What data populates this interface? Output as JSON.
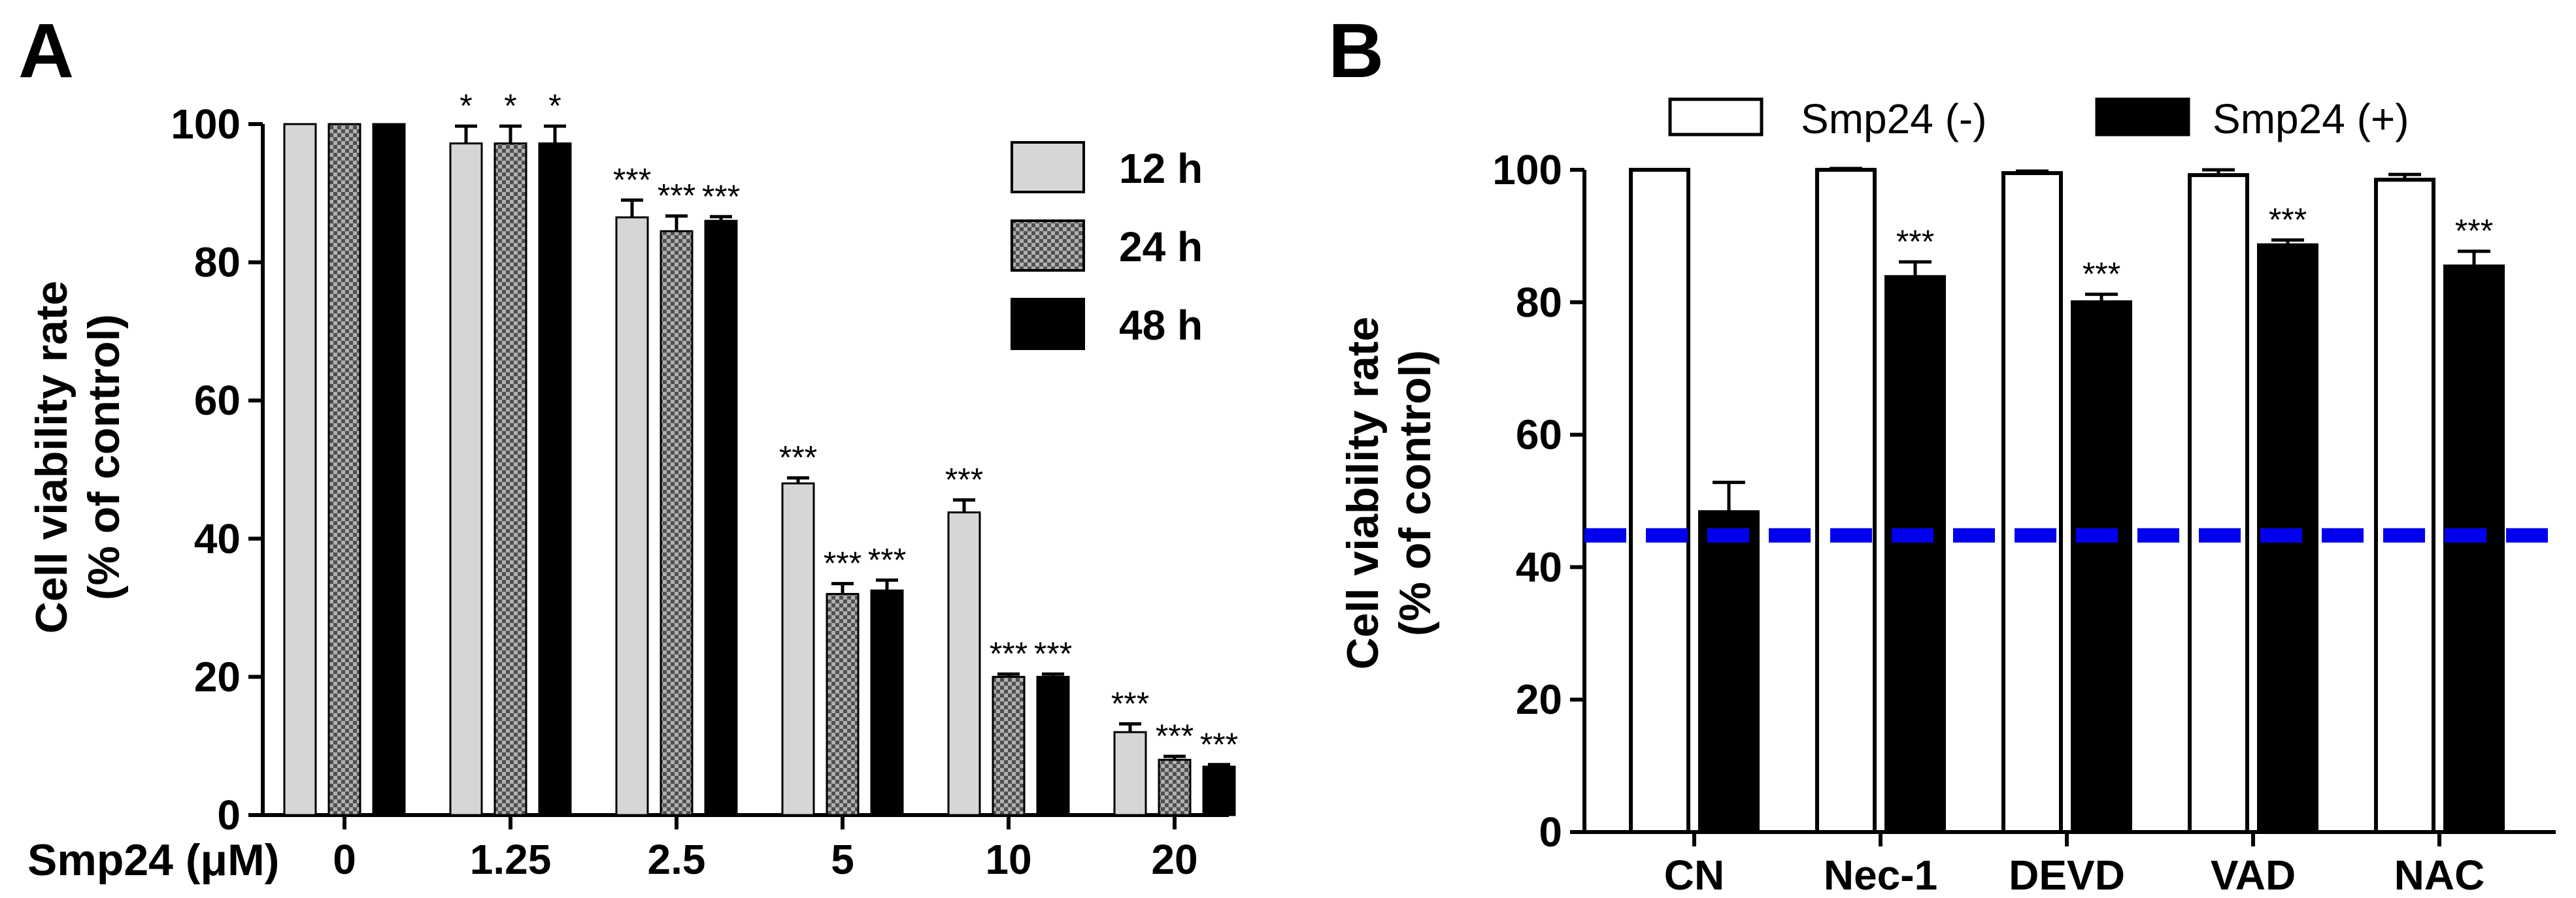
{
  "chart_data": [
    {
      "panel_label": "A",
      "type": "bar",
      "x_title": "Smp24 (μM)",
      "ylabel_line1": "Cell viability rate",
      "ylabel_line2": "(% of control)",
      "ylim": [
        0,
        100
      ],
      "yticks": [
        "0",
        "20",
        "40",
        "60",
        "80",
        "100"
      ],
      "categories": [
        "0",
        "1.25",
        "2.5",
        "5",
        "10",
        "20"
      ],
      "legend_position": "top-right",
      "series": [
        {
          "name": "12 h",
          "fill": "light-gray",
          "color": "#d6d6d6",
          "values": [
            100,
            97.2,
            86.5,
            48.0,
            43.8,
            12.0
          ],
          "errors": [
            0,
            2.5,
            2.5,
            0.8,
            1.8,
            1.2
          ],
          "significance": [
            "",
            "*",
            "***",
            "***",
            "***",
            "***"
          ]
        },
        {
          "name": "24 h",
          "fill": "checkered",
          "color": "#808080",
          "values": [
            100,
            97.2,
            84.5,
            32.0,
            20.0,
            8.0
          ],
          "errors": [
            0,
            2.5,
            2.2,
            1.5,
            0.4,
            0.5
          ],
          "significance": [
            "",
            "*",
            "***",
            "***",
            "***",
            "***"
          ]
        },
        {
          "name": "48 h",
          "fill": "black",
          "color": "#000000",
          "values": [
            100,
            97.2,
            86.0,
            32.5,
            20.0,
            7.0
          ],
          "errors": [
            0,
            2.5,
            0.6,
            1.5,
            0.4,
            0.3
          ],
          "significance": [
            "",
            "*",
            "***",
            "***",
            "***",
            "***"
          ]
        }
      ]
    },
    {
      "panel_label": "B",
      "type": "bar",
      "x_title": "",
      "ylabel_line1": "Cell viability rate",
      "ylabel_line2": "(% of control)",
      "ylim": [
        0,
        100
      ],
      "yticks": [
        "0",
        "20",
        "40",
        "60",
        "80",
        "100"
      ],
      "categories": [
        "CN",
        "Nec-1",
        "DEVD",
        "VAD",
        "NAC"
      ],
      "legend_position": "top",
      "reference_line": {
        "value": 44.8,
        "style": "dashed",
        "color": "#0000ee"
      },
      "series": [
        {
          "name": "Smp24 (-)",
          "fill": "white",
          "color": "#ffffff",
          "values": [
            100,
            100,
            99.5,
            99.2,
            98.5
          ],
          "errors": [
            0,
            0.2,
            0.3,
            0.8,
            0.8
          ],
          "significance": [
            "",
            "",
            "",
            "",
            ""
          ]
        },
        {
          "name": "Smp24 (+)",
          "fill": "black",
          "color": "#000000",
          "values": [
            48.3,
            83.8,
            80.0,
            88.6,
            85.4
          ],
          "errors": [
            4.5,
            2.3,
            1.2,
            0.8,
            2.3
          ],
          "significance": [
            "",
            "***",
            "***",
            "***",
            "***"
          ]
        }
      ]
    }
  ]
}
